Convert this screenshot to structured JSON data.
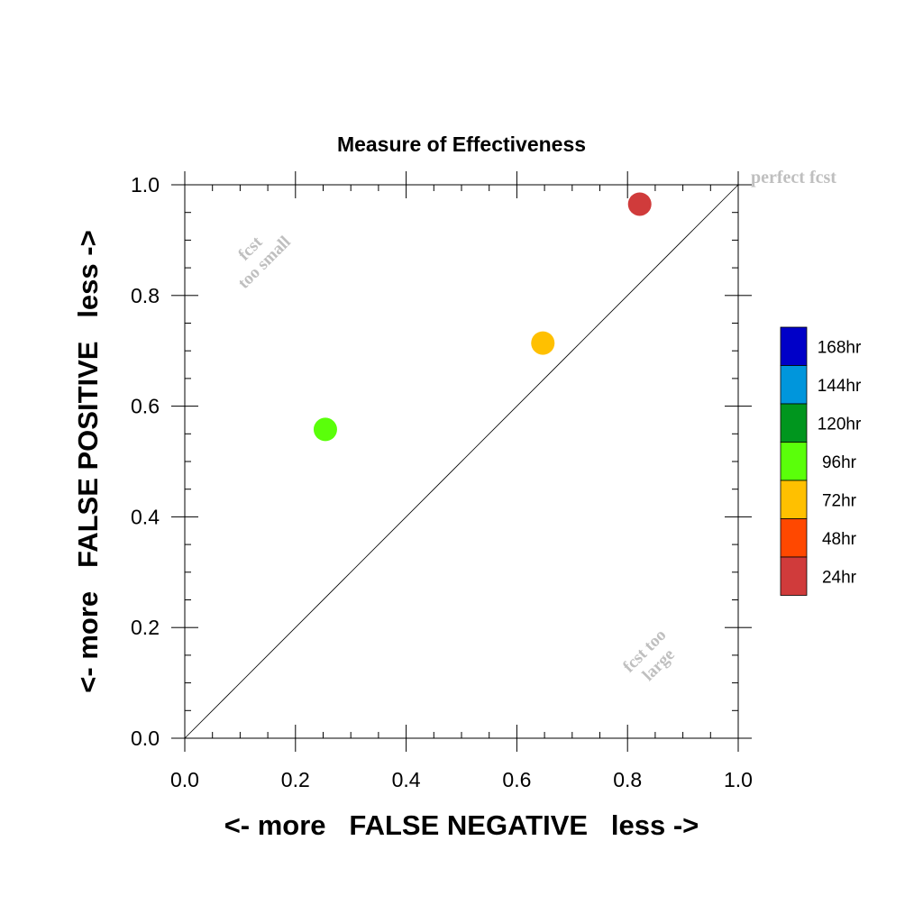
{
  "chart_data": {
    "type": "scatter",
    "title": "Measure of Effectiveness",
    "xlabel": "<- more   FALSE NEGATIVE   less ->",
    "ylabel": "<- more   FALSE POSITIVE   less ->",
    "xlim": [
      0.0,
      1.0
    ],
    "ylim": [
      0.0,
      1.0
    ],
    "x_ticks": [
      "0.0",
      "0.2",
      "0.4",
      "0.6",
      "0.8",
      "1.0"
    ],
    "y_ticks": [
      "0.0",
      "0.2",
      "0.4",
      "0.6",
      "0.8",
      "1.0"
    ],
    "grid": false,
    "reference_line": {
      "from": [
        0.0,
        0.0
      ],
      "to": [
        1.0,
        1.0
      ],
      "color": "#000000"
    },
    "annotations": {
      "perfect": "perfect fcst",
      "too_small_1": "fcst",
      "too_small_2": "too small",
      "too_large_1": "fcst too",
      "too_large_2": "large"
    },
    "annotation_color": "#bfbfbf",
    "points": [
      {
        "x": 0.254,
        "y": 0.558,
        "color": "#5aff0a"
      },
      {
        "x": 0.647,
        "y": 0.714,
        "color": "#ffc000"
      },
      {
        "x": 0.822,
        "y": 0.965,
        "color": "#d03b3b"
      }
    ],
    "legend": {
      "placement": "right",
      "items": [
        {
          "label": "168hr",
          "color": "#0000c8"
        },
        {
          "label": "144hr",
          "color": "#0096dc"
        },
        {
          "label": "120hr",
          "color": "#00961e"
        },
        {
          "label": "96hr",
          "color": "#5aff0a"
        },
        {
          "label": "72hr",
          "color": "#ffc000"
        },
        {
          "label": "48hr",
          "color": "#ff4800"
        },
        {
          "label": "24hr",
          "color": "#d03b3b"
        }
      ]
    }
  }
}
